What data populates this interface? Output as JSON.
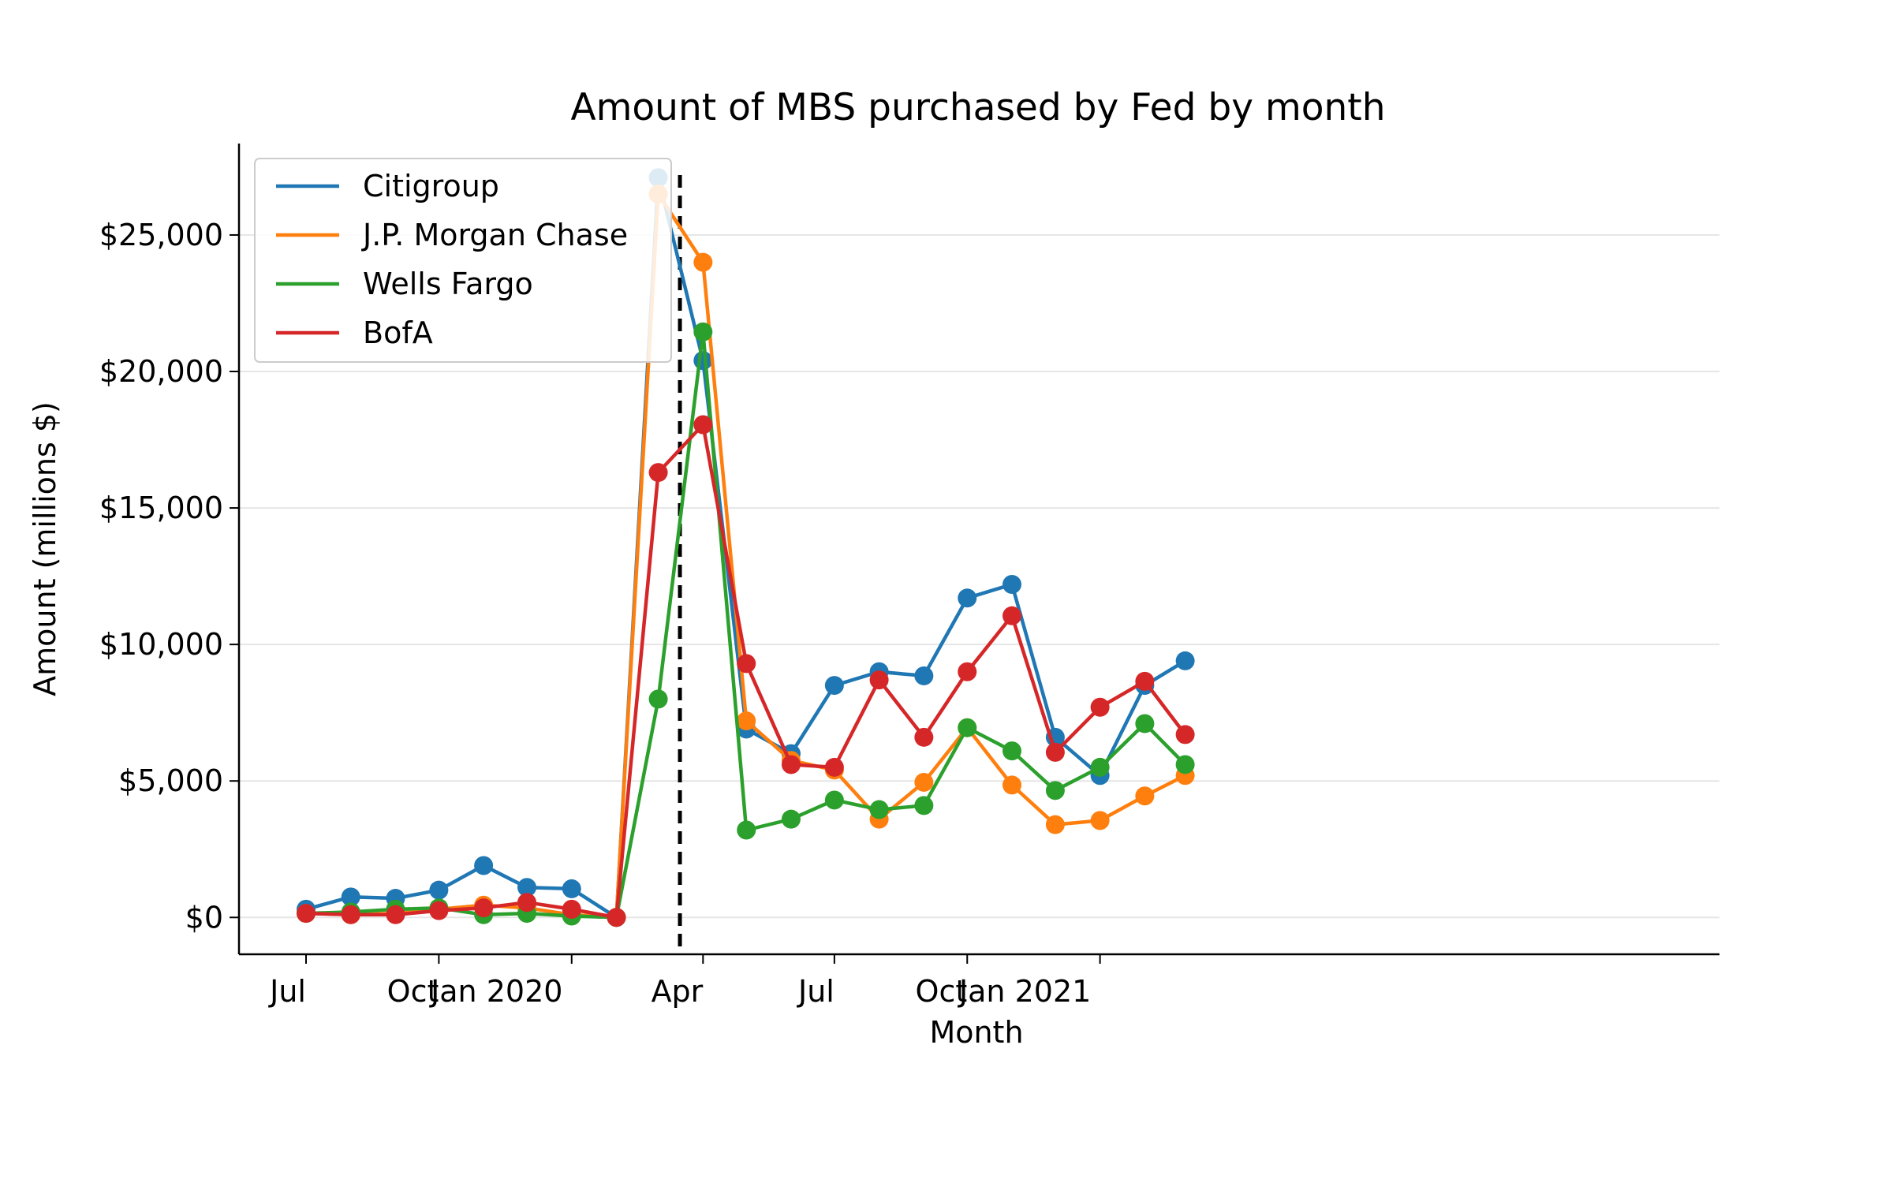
{
  "chart_data": {
    "type": "line",
    "title": "Amount of MBS purchased by Fed by month",
    "xlabel": "Month",
    "ylabel": "Amount (millions $)",
    "x": [
      "2019-07",
      "2019-08",
      "2019-09",
      "2019-10",
      "2019-11",
      "2019-12",
      "2020-01",
      "2020-02",
      "2020-03",
      "2020-04",
      "2020-05",
      "2020-06",
      "2020-07",
      "2020-08",
      "2020-09",
      "2020-10",
      "2020-11",
      "2020-12",
      "2021-01",
      "2021-02",
      "2021-03"
    ],
    "x_ticks": [
      {
        "date": "2019-07",
        "label": "Jul"
      },
      {
        "date": "2019-10",
        "label": "Oct"
      },
      {
        "date": "2020-01",
        "label": "Jan 2020"
      },
      {
        "date": "2020-04",
        "label": "Apr"
      },
      {
        "date": "2020-07",
        "label": "Jul"
      },
      {
        "date": "2020-10",
        "label": "Oct"
      },
      {
        "date": "2021-01",
        "label": "Jan 2021"
      }
    ],
    "y_ticks": [
      {
        "value": 0,
        "label": "$0"
      },
      {
        "value": 5000,
        "label": "$5,000"
      },
      {
        "value": 10000,
        "label": "$10,000"
      },
      {
        "value": 15000,
        "label": "$15,000"
      },
      {
        "value": 20000,
        "label": "$20,000"
      },
      {
        "value": 25000,
        "label": "$25,000"
      }
    ],
    "ylim": [
      -1350,
      28350
    ],
    "grid": "y",
    "legend": "upper-left",
    "vline": {
      "date": "2020-03-16",
      "style": "dashed",
      "color": "#000000"
    },
    "series": [
      {
        "name": "Citigroup",
        "color": "#1f77b4",
        "values": [
          300,
          750,
          700,
          1000,
          1900,
          1100,
          1050,
          0,
          27100,
          20400,
          6900,
          6000,
          8500,
          9000,
          8850,
          11700,
          12200,
          6600,
          5200,
          8500,
          9400
        ]
      },
      {
        "name": "J.P. Morgan Chase",
        "color": "#ff7f0e",
        "values": [
          150,
          100,
          150,
          300,
          450,
          350,
          100,
          0,
          26500,
          24000,
          7200,
          5750,
          5400,
          3600,
          4950,
          6950,
          4850,
          3400,
          3550,
          4450,
          5200
        ]
      },
      {
        "name": "Wells Fargo",
        "color": "#2ca02c",
        "values": [
          150,
          200,
          300,
          350,
          100,
          150,
          50,
          0,
          8000,
          21450,
          3200,
          3600,
          4300,
          3950,
          4100,
          6950,
          6100,
          4650,
          5500,
          7100,
          5600
        ]
      },
      {
        "name": "BofA",
        "color": "#d62728",
        "values": [
          150,
          100,
          100,
          250,
          350,
          550,
          300,
          0,
          16300,
          18050,
          9300,
          5600,
          5500,
          8700,
          6600,
          9000,
          11050,
          6050,
          7700,
          8650,
          6700
        ]
      }
    ]
  }
}
